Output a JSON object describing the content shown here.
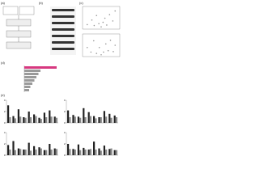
{
  "panels": {
    "a": {
      "label": "(a)"
    },
    "b": {
      "label": "(b)"
    },
    "c": {
      "label": "(c)",
      "plots": [
        {
          "points": [
            [
              -3,
              1
            ],
            [
              -2,
              2
            ],
            [
              -1.5,
              0.8
            ],
            [
              -1,
              3
            ],
            [
              -0.5,
              1.2
            ],
            [
              0,
              0.5
            ],
            [
              0.4,
              1.5
            ],
            [
              0.8,
              2.4
            ],
            [
              1.2,
              0.9
            ],
            [
              1.8,
              3.2
            ],
            [
              2.5,
              1.8
            ],
            [
              3,
              4
            ]
          ]
        },
        {
          "points": [
            [
              -3,
              2
            ],
            [
              -2.2,
              1
            ],
            [
              -1.6,
              3.5
            ],
            [
              -1,
              0.7
            ],
            [
              -0.4,
              2
            ],
            [
              0,
              0.4
            ],
            [
              0.5,
              1
            ],
            [
              1,
              2.8
            ],
            [
              1.5,
              1.3
            ],
            [
              2,
              3.6
            ],
            [
              2.6,
              1.1
            ],
            [
              3,
              2.5
            ]
          ]
        }
      ],
      "xlim": [
        -4,
        4
      ],
      "ylim": [
        0,
        5
      ]
    },
    "d": {
      "label": "(d)",
      "values": [
        8,
        4,
        3.5,
        3,
        2.5,
        2,
        1.5,
        1.2
      ],
      "colors": [
        "#d6387f",
        "#9a9a9a"
      ],
      "xlim": [
        0,
        10
      ]
    },
    "e": {
      "label": "(e)",
      "ylim": [
        0,
        4
      ],
      "yticks": [
        0,
        2,
        4
      ],
      "colors": [
        "#222222",
        "#8a8a8a"
      ],
      "plots": [
        {
          "series": [
            [
              3.1,
              1.2,
              2.4,
              1.0,
              2.0,
              1.5,
              0.9,
              1.8,
              2.2,
              1.1
            ],
            [
              1.0,
              0.8,
              1.1,
              0.9,
              1.0,
              1.2,
              0.7,
              1.0,
              1.1,
              0.9
            ]
          ]
        },
        {
          "series": [
            [
              2.2,
              1.4,
              1.1,
              2.6,
              1.9,
              1.2,
              1.0,
              2.1,
              1.6,
              1.3
            ],
            [
              1.0,
              1.1,
              0.9,
              1.0,
              1.2,
              0.8,
              1.0,
              1.1,
              0.9,
              1.0
            ]
          ]
        },
        {
          "series": [
            [
              1.8,
              2.5,
              1.2,
              1.0,
              2.2,
              1.6,
              1.4,
              0.9,
              2.0,
              1.2
            ],
            [
              1.0,
              0.9,
              1.1,
              1.0,
              0.8,
              1.0,
              1.2,
              0.9,
              1.0,
              1.1
            ]
          ]
        },
        {
          "series": [
            [
              2.0,
              1.1,
              1.9,
              1.3,
              1.0,
              2.4,
              1.2,
              1.7,
              1.1,
              0.9
            ],
            [
              1.1,
              1.0,
              0.9,
              1.0,
              1.1,
              1.0,
              0.8,
              1.0,
              1.2,
              0.9
            ]
          ]
        }
      ]
    }
  }
}
